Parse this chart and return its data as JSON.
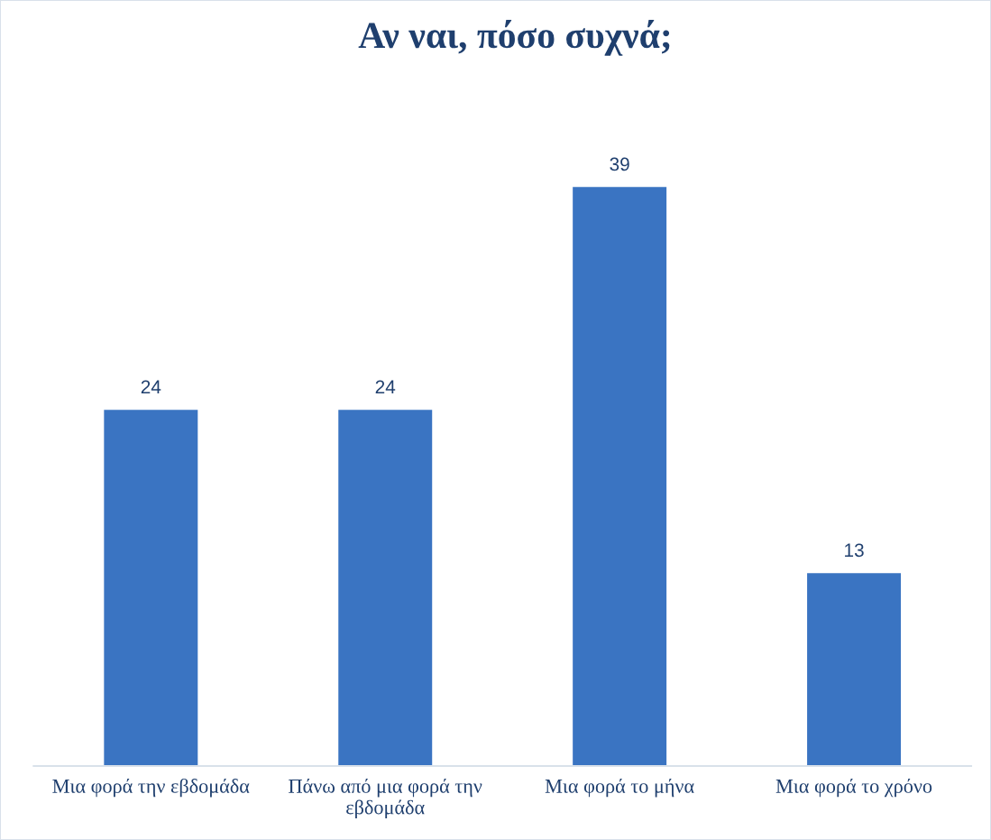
{
  "chart_data": {
    "type": "bar",
    "title": "Αν ναι, πόσο συχνά;",
    "categories": [
      "Μια φορά την εβδομάδα",
      "Πάνω από μια φορά την εβδομάδα",
      "Μια φορά το μήνα",
      "Μια φορά το χρόνο"
    ],
    "values": [
      24,
      24,
      39,
      13
    ],
    "color": "#3a74c2",
    "data_labels": true
  }
}
